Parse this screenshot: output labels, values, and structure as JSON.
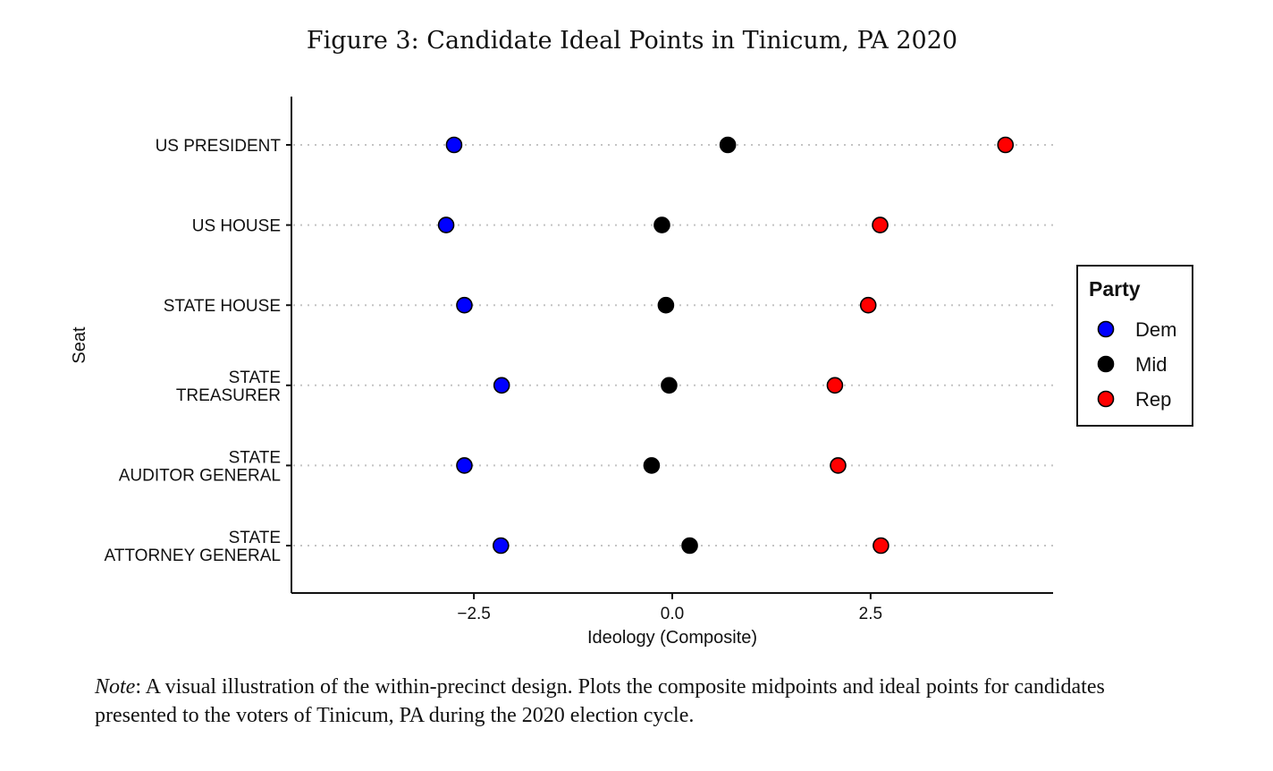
{
  "figure": {
    "title": "Figure 3: Candidate Ideal Points in Tinicum, PA 2020",
    "note_label": "Note",
    "note_text": ": A visual illustration of the within-precinct design. Plots the composite midpoints and ideal points for candidates presented to the voters of Tinicum, PA during the 2020 election cycle."
  },
  "chart_data": {
    "type": "scatter",
    "title": "",
    "xlabel": "Ideology (Composite)",
    "ylabel": "Seat",
    "xlim": [
      -4.8,
      4.8
    ],
    "xticks": [
      {
        "value": -2.5,
        "label": "−2.5"
      },
      {
        "value": 0.0,
        "label": "0.0"
      },
      {
        "value": 2.5,
        "label": "2.5"
      }
    ],
    "categories": [
      [
        "US PRESIDENT"
      ],
      [
        "US HOUSE"
      ],
      [
        "STATE HOUSE"
      ],
      [
        "STATE",
        "TREASURER"
      ],
      [
        "STATE",
        "AUDITOR GENERAL"
      ],
      [
        "STATE",
        "ATTORNEY GENERAL"
      ]
    ],
    "series": [
      {
        "name": "Dem",
        "color": "#0000ff",
        "values": [
          -2.75,
          -2.85,
          -2.62,
          -2.15,
          -2.62,
          -2.16
        ]
      },
      {
        "name": "Mid",
        "color": "#000000",
        "values": [
          0.7,
          -0.13,
          -0.08,
          -0.04,
          -0.26,
          0.22
        ]
      },
      {
        "name": "Rep",
        "color": "#ff0000",
        "values": [
          4.2,
          2.62,
          2.47,
          2.05,
          2.09,
          2.63
        ]
      }
    ],
    "legend": {
      "title": "Party",
      "position": "right"
    },
    "grid": "horizontal dotted lines per seat"
  }
}
